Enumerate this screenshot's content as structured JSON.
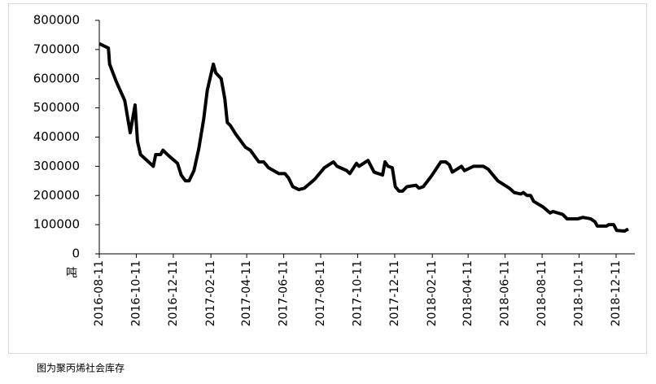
{
  "chart_data": {
    "type": "line",
    "unit_label": "吨",
    "caption": "图为聚丙烯社会库存",
    "grid": false,
    "series": [
      {
        "name": "聚丙烯社会库存",
        "color": "#000000",
        "x": [
          "2016-08-11",
          "2016-08-26",
          "2016-08-28",
          "2016-09-08",
          "2016-09-22",
          "2016-10-01",
          "2016-10-09",
          "2016-10-13",
          "2016-10-18",
          "2016-11-08",
          "2016-11-12",
          "2016-11-20",
          "2016-11-24",
          "2016-12-04",
          "2016-12-18",
          "2016-12-24",
          "2016-12-31",
          "2017-01-06",
          "2017-01-14",
          "2017-01-22",
          "2017-01-30",
          "2017-02-05",
          "2017-02-15",
          "2017-02-19",
          "2017-02-28",
          "2017-03-06",
          "2017-03-10",
          "2017-03-15",
          "2017-03-24",
          "2017-04-09",
          "2017-04-17",
          "2017-05-01",
          "2017-05-09",
          "2017-05-17",
          "2017-06-03",
          "2017-06-13",
          "2017-06-19",
          "2017-06-26",
          "2017-07-06",
          "2017-07-15",
          "2017-08-01",
          "2017-08-17",
          "2017-09-01",
          "2017-09-07",
          "2017-09-23",
          "2017-09-28",
          "2017-10-09",
          "2017-10-13",
          "2017-10-28",
          "2017-11-07",
          "2017-11-21",
          "2017-11-25",
          "2017-11-30",
          "2017-12-07",
          "2017-12-12",
          "2017-12-18",
          "2017-12-24",
          "2017-12-31",
          "2018-01-15",
          "2018-01-20",
          "2018-01-27",
          "2018-02-09",
          "2018-02-25",
          "2018-03-05",
          "2018-03-11",
          "2018-03-16",
          "2018-03-31",
          "2018-04-05",
          "2018-04-20",
          "2018-05-06",
          "2018-05-14",
          "2018-05-30",
          "2018-06-18",
          "2018-06-26",
          "2018-07-07",
          "2018-07-11",
          "2018-07-17",
          "2018-07-23",
          "2018-07-28",
          "2018-08-13",
          "2018-08-24",
          "2018-08-29",
          "2018-09-14",
          "2018-09-21",
          "2018-10-09",
          "2018-10-17",
          "2018-10-30",
          "2018-11-06",
          "2018-11-10",
          "2018-11-25",
          "2018-11-29",
          "2018-12-07",
          "2018-12-12",
          "2018-12-25",
          "2018-12-31"
        ],
        "values": [
          720000,
          705000,
          650000,
          590000,
          525000,
          415000,
          510000,
          385000,
          340000,
          300000,
          340000,
          340000,
          355000,
          335000,
          310000,
          270000,
          250000,
          250000,
          285000,
          360000,
          460000,
          560000,
          650000,
          620000,
          600000,
          530000,
          450000,
          440000,
          410000,
          365000,
          355000,
          315000,
          315000,
          295000,
          275000,
          275000,
          260000,
          230000,
          220000,
          225000,
          255000,
          295000,
          315000,
          300000,
          285000,
          275000,
          310000,
          300000,
          320000,
          280000,
          270000,
          315000,
          300000,
          295000,
          230000,
          215000,
          215000,
          230000,
          235000,
          225000,
          230000,
          265000,
          315000,
          315000,
          305000,
          280000,
          300000,
          285000,
          300000,
          300000,
          290000,
          250000,
          225000,
          210000,
          205000,
          210000,
          200000,
          200000,
          180000,
          160000,
          140000,
          145000,
          135000,
          120000,
          120000,
          125000,
          120000,
          110000,
          95000,
          95000,
          100000,
          100000,
          80000,
          78000,
          85000
        ]
      }
    ],
    "xlim": [
      "2016-08-11",
      "2018-12-31"
    ],
    "xticks": [
      "2016-08-11",
      "2016-10-11",
      "2016-12-11",
      "2017-02-11",
      "2017-04-11",
      "2017-06-11",
      "2017-08-11",
      "2017-10-11",
      "2017-12-11",
      "2018-02-11",
      "2018-04-11",
      "2018-06-11",
      "2018-08-11",
      "2018-10-11",
      "2018-12-11"
    ],
    "ylim": [
      0,
      800000
    ],
    "yticks": [
      0,
      100000,
      200000,
      300000,
      400000,
      500000,
      600000,
      700000,
      800000
    ]
  }
}
